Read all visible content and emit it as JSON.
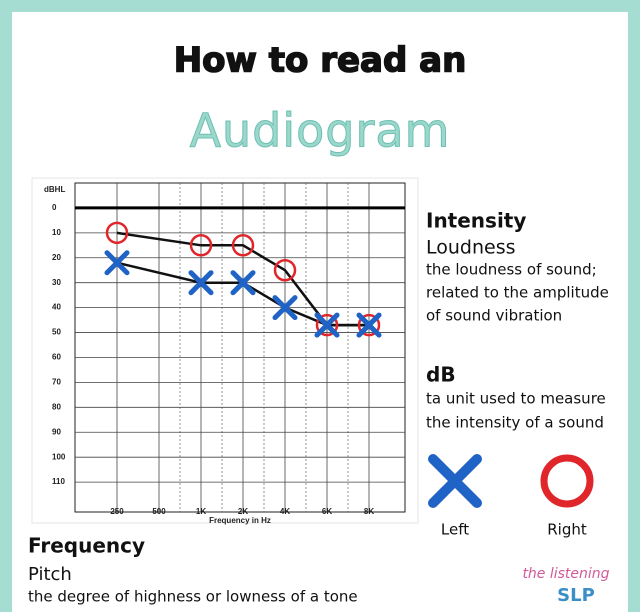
{
  "header": {
    "line1": "How to read an",
    "line2": "Audiogram"
  },
  "chart_data": {
    "type": "audiogram",
    "y_label": "dBHL",
    "x_label": "Frequency in Hz",
    "categories": [
      "250",
      "500",
      "1K",
      "2K",
      "4K",
      "6K",
      "8K"
    ],
    "ylim": [
      -10,
      122
    ],
    "yticks": [
      0,
      10,
      20,
      30,
      40,
      50,
      60,
      70,
      80,
      90,
      100,
      110
    ],
    "y_inverted": true,
    "series": [
      {
        "name": "Right",
        "color": "#e0262b",
        "marker": "circle",
        "x": [
          "250",
          "1K",
          "2K",
          "4K",
          "6K",
          "8K"
        ],
        "values": [
          10,
          15,
          15,
          25,
          47,
          47
        ]
      },
      {
        "name": "Left",
        "color": "#1f63c6",
        "marker": "cross",
        "x": [
          "250",
          "1K",
          "2K",
          "4K",
          "6K",
          "8K"
        ],
        "values": [
          22,
          30,
          30,
          40,
          47,
          47
        ]
      }
    ]
  },
  "intensity": {
    "title": "Intensity",
    "subtitle": "Loudness",
    "lines": [
      "the loudness of sound;",
      "related to the amplitude",
      "of sound vibration"
    ]
  },
  "db": {
    "title": "dB",
    "lines": [
      "ta unit used to measure",
      "the intensity of a sound"
    ]
  },
  "frequency": {
    "title": "Frequency",
    "subtitle": "Pitch",
    "line": "the degree of highness or lowness of a tone"
  },
  "logo": {
    "line1": "the listening",
    "line2": "SLP"
  }
}
